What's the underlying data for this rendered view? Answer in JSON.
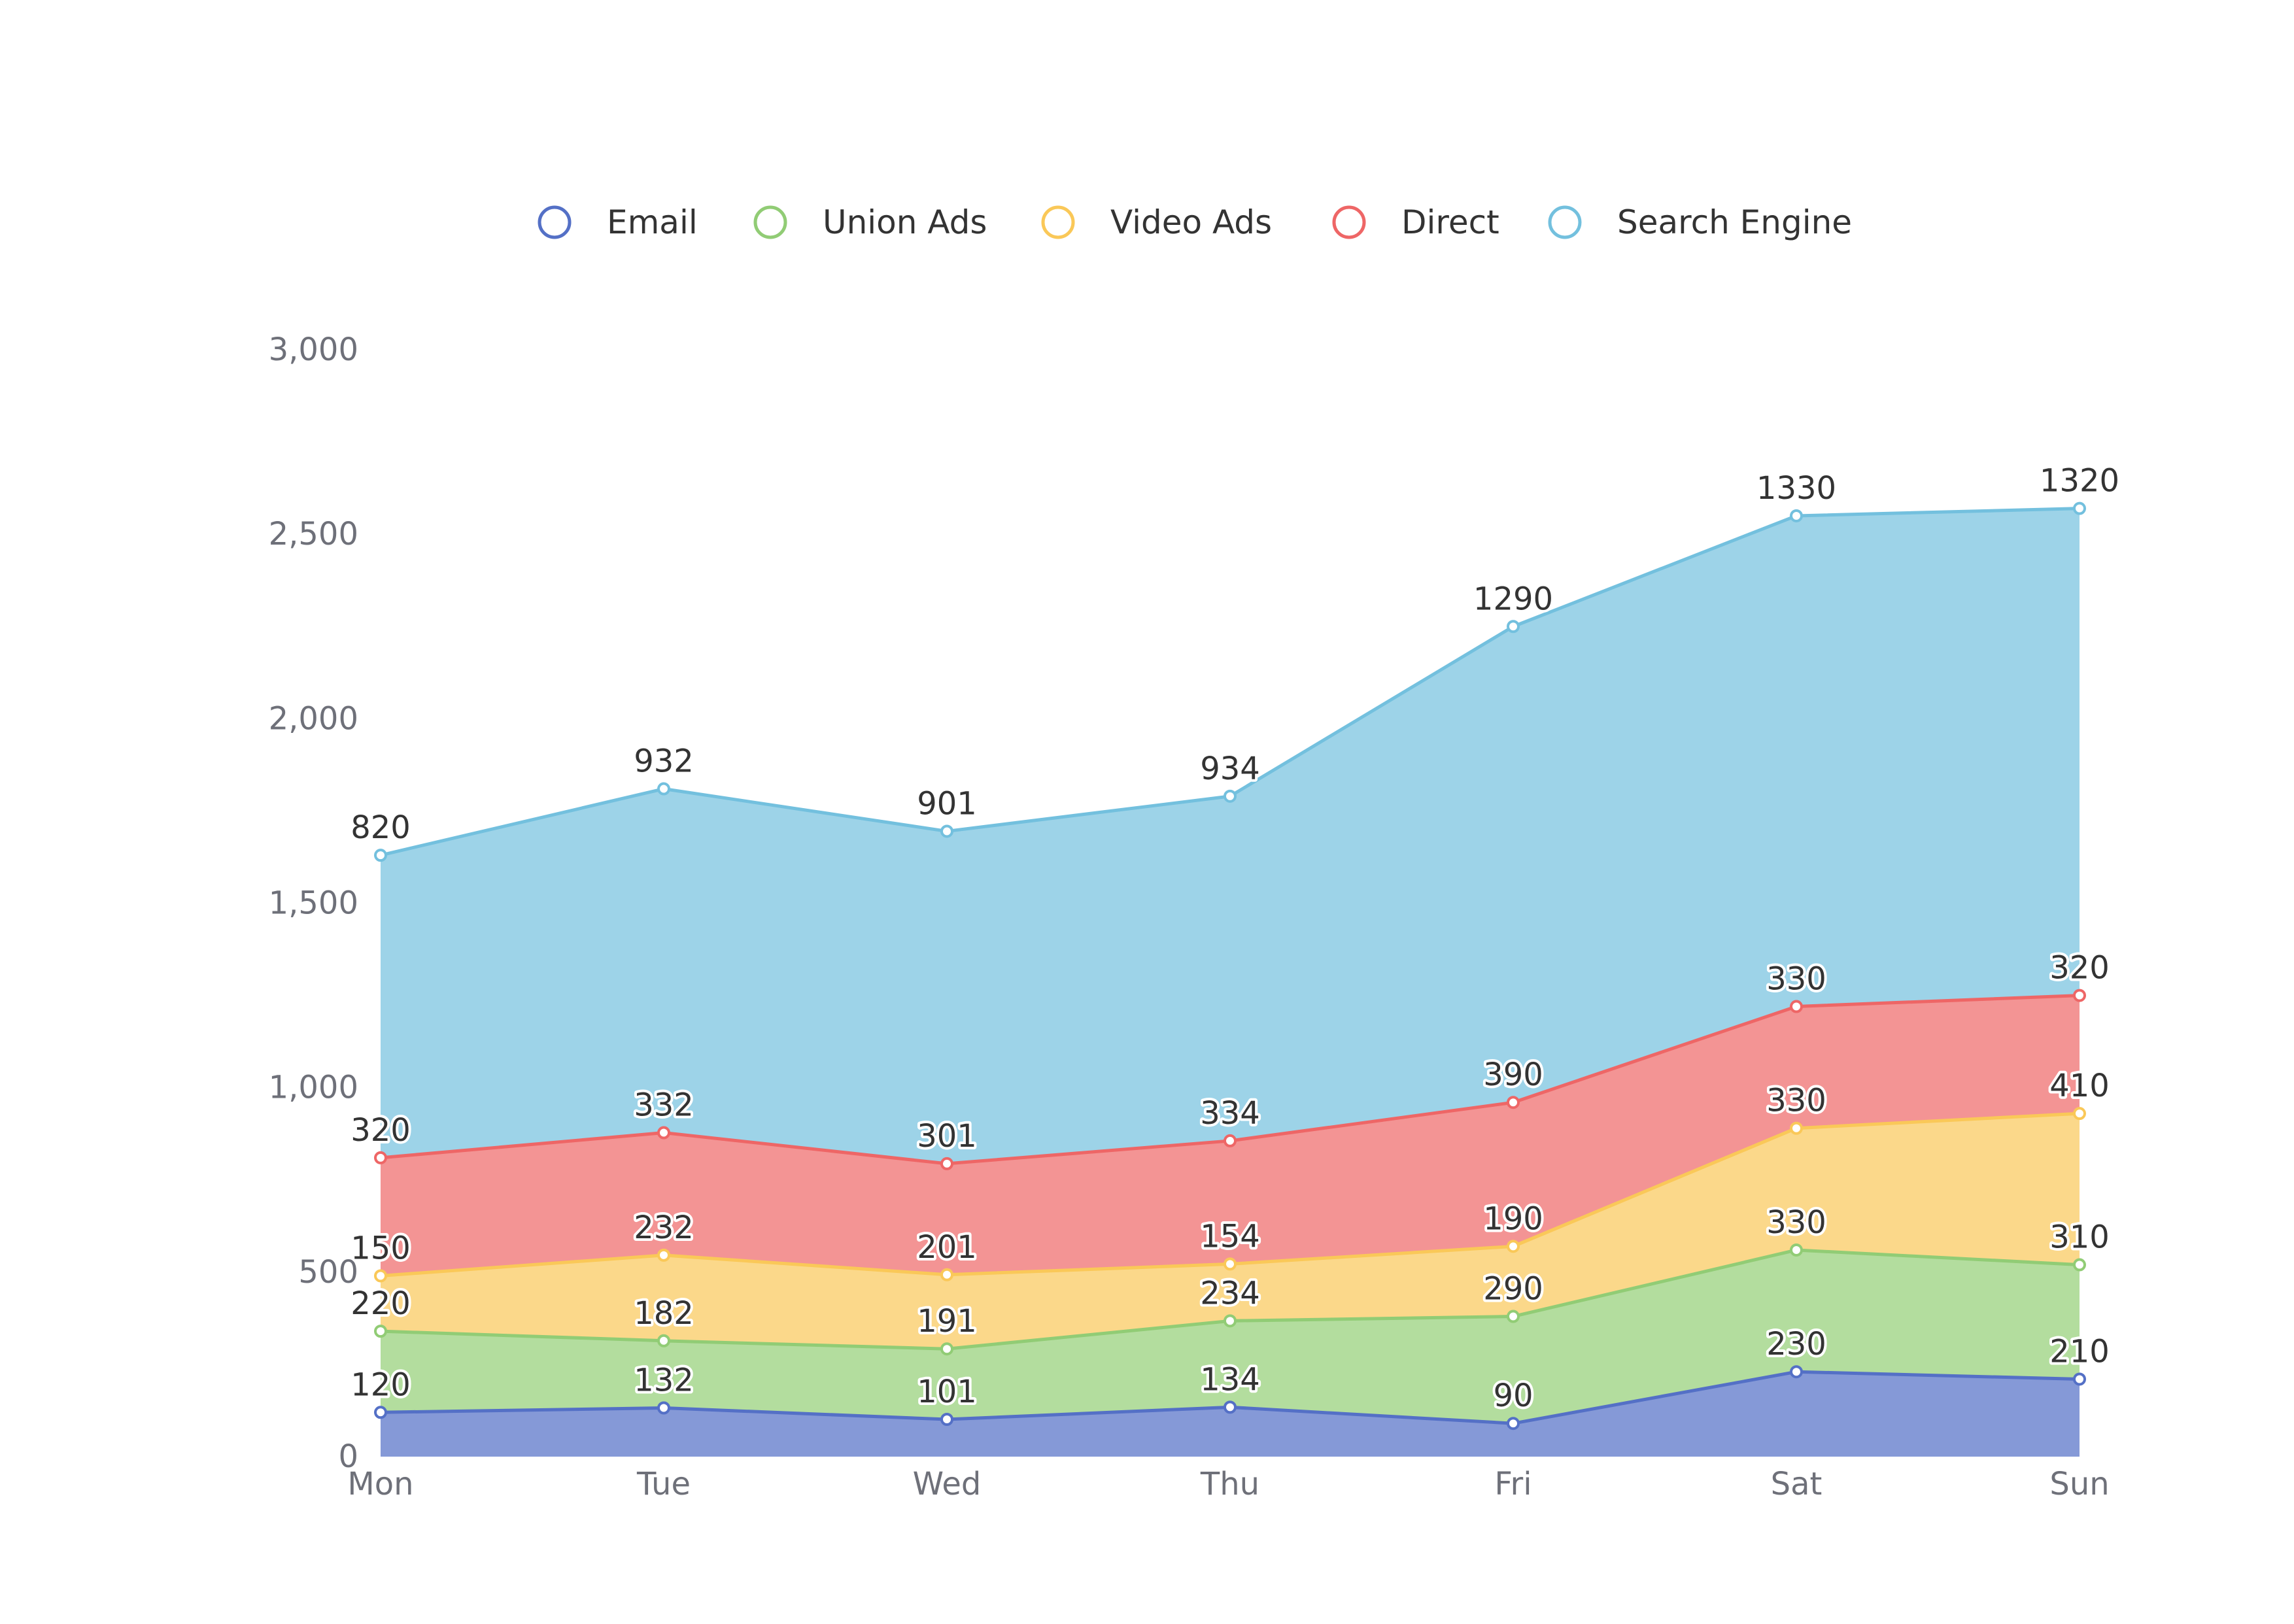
{
  "chart_data": {
    "type": "area",
    "stacked": true,
    "categories": [
      "Mon",
      "Tue",
      "Wed",
      "Thu",
      "Fri",
      "Sat",
      "Sun"
    ],
    "series": [
      {
        "name": "Email",
        "values": [
          120,
          132,
          101,
          134,
          90,
          230,
          210
        ],
        "line_color": "#5470c6",
        "fill_color": "#8599d7"
      },
      {
        "name": "Union Ads",
        "values": [
          220,
          182,
          191,
          234,
          290,
          330,
          310
        ],
        "line_color": "#91cc75",
        "fill_color": "#b3dd9e"
      },
      {
        "name": "Video Ads",
        "values": [
          150,
          232,
          201,
          154,
          190,
          330,
          410
        ],
        "line_color": "#fac858",
        "fill_color": "#fbd88a"
      },
      {
        "name": "Direct",
        "values": [
          320,
          332,
          301,
          334,
          390,
          330,
          320
        ],
        "line_color": "#ee6666",
        "fill_color": "#f39494"
      },
      {
        "name": "Search Engine",
        "values": [
          820,
          932,
          901,
          934,
          1290,
          1330,
          1320
        ],
        "line_color": "#73c0de",
        "fill_color": "#9dd3e8"
      }
    ],
    "y_ticks": [
      "0",
      "500",
      "1,000",
      "1,500",
      "2,000",
      "2,500",
      "3,000"
    ],
    "ylim": [
      0,
      3000
    ],
    "grid": false,
    "legend": "top-center",
    "data_labels": true
  }
}
